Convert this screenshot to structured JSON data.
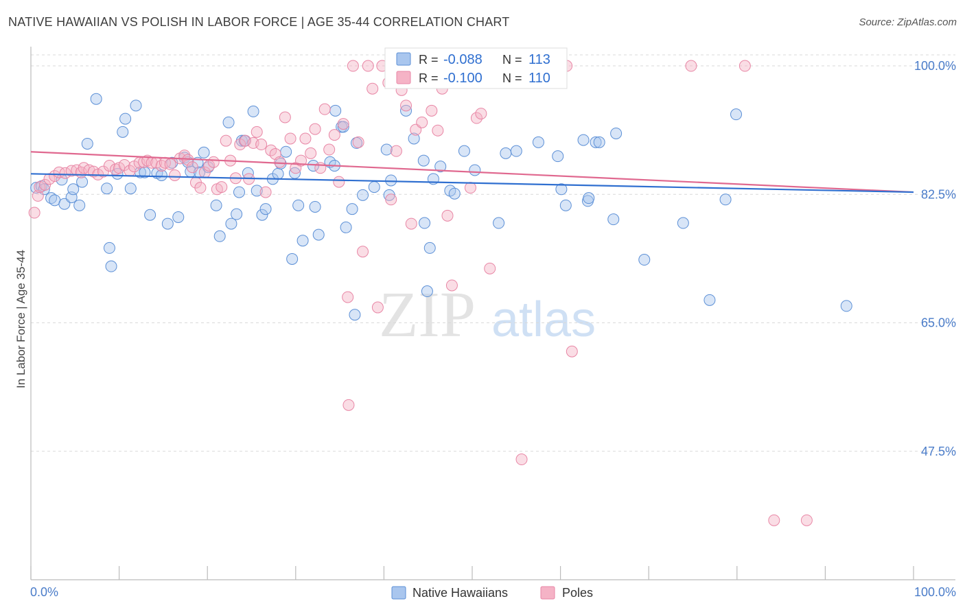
{
  "header": {
    "title": "NATIVE HAWAIIAN VS POLISH IN LABOR FORCE | AGE 35-44 CORRELATION CHART",
    "source": "Source: ZipAtlas.com"
  },
  "watermark": {
    "zip": "ZIP",
    "atlas": "atlas"
  },
  "colors": {
    "blue_fill": "#a9c6ee",
    "blue_stroke": "#5b8fd6",
    "blue_line": "#2f6fd0",
    "pink_fill": "#f5b3c6",
    "pink_stroke": "#e886a5",
    "pink_line": "#e0688f",
    "axis_text": "#4a7cc9",
    "grid": "#d9d9d9"
  },
  "legend_stats": [
    {
      "r_label": "R =",
      "r_value": "-0.088",
      "n_label": "N =",
      "n_value": "113",
      "color": "blue"
    },
    {
      "r_label": "R =",
      "r_value": "-0.100",
      "n_label": "N =",
      "n_value": "110",
      "color": "pink"
    }
  ],
  "bottom_legend": [
    {
      "label": "Native Hawaiians",
      "color": "blue"
    },
    {
      "label": "Poles",
      "color": "pink"
    }
  ],
  "chart_data": {
    "type": "scatter",
    "title": "NATIVE HAWAIIAN VS POLISH IN LABOR FORCE | AGE 35-44 CORRELATION CHART",
    "xlabel": "",
    "ylabel": "In Labor Force | Age 35-44",
    "xlim": [
      0,
      100
    ],
    "ylim": [
      30,
      101.5
    ],
    "x_tick_labels": [
      "0.0%",
      "100.0%"
    ],
    "y_ticks": [
      47.5,
      65.0,
      82.5,
      100.0
    ],
    "y_tick_labels": [
      "47.5%",
      "65.0%",
      "82.5%",
      "100.0%"
    ],
    "grid": true,
    "series": [
      {
        "name": "Native Hawaiians",
        "color": "blue",
        "trend": {
          "x": [
            0,
            100
          ],
          "y": [
            85.3,
            82.8
          ]
        },
        "points": [
          [
            0.6,
            83.4
          ],
          [
            1.2,
            83.6
          ],
          [
            1.5,
            83.2
          ],
          [
            2.3,
            82.0
          ],
          [
            2.7,
            81.7
          ],
          [
            3.5,
            84.5
          ],
          [
            3.8,
            81.2
          ],
          [
            4.6,
            82.1
          ],
          [
            4.8,
            83.2
          ],
          [
            5.5,
            81.0
          ],
          [
            5.8,
            84.2
          ],
          [
            6.4,
            89.4
          ],
          [
            7.4,
            95.5
          ],
          [
            8.6,
            83.3
          ],
          [
            8.9,
            75.2
          ],
          [
            9.1,
            72.7
          ],
          [
            9.8,
            85.3
          ],
          [
            10.4,
            91.0
          ],
          [
            10.7,
            92.8
          ],
          [
            11.3,
            83.3
          ],
          [
            11.9,
            94.6
          ],
          [
            12.4,
            85.5
          ],
          [
            12.9,
            85.5
          ],
          [
            13.5,
            79.7
          ],
          [
            14.3,
            85.4
          ],
          [
            14.8,
            85.1
          ],
          [
            15.5,
            78.5
          ],
          [
            16.0,
            86.8
          ],
          [
            16.7,
            79.4
          ],
          [
            17.4,
            87.5
          ],
          [
            17.8,
            86.9
          ],
          [
            18.1,
            85.6
          ],
          [
            18.9,
            86.8
          ],
          [
            19.1,
            85.5
          ],
          [
            19.6,
            88.2
          ],
          [
            20.1,
            86.2
          ],
          [
            21.0,
            81.0
          ],
          [
            21.4,
            76.8
          ],
          [
            22.4,
            92.3
          ],
          [
            22.7,
            78.5
          ],
          [
            23.3,
            79.8
          ],
          [
            23.6,
            82.8
          ],
          [
            23.9,
            89.8
          ],
          [
            24.2,
            89.8
          ],
          [
            24.6,
            85.4
          ],
          [
            25.2,
            93.8
          ],
          [
            25.6,
            83.0
          ],
          [
            26.2,
            79.7
          ],
          [
            26.6,
            80.5
          ],
          [
            27.4,
            84.6
          ],
          [
            28.0,
            85.3
          ],
          [
            28.3,
            86.7
          ],
          [
            28.9,
            88.3
          ],
          [
            29.6,
            73.7
          ],
          [
            29.9,
            85.4
          ],
          [
            30.3,
            81.0
          ],
          [
            30.8,
            76.2
          ],
          [
            32.0,
            86.4
          ],
          [
            32.2,
            80.8
          ],
          [
            32.6,
            77.0
          ],
          [
            33.9,
            86.9
          ],
          [
            34.4,
            86.4
          ],
          [
            34.5,
            93.9
          ],
          [
            35.2,
            91.7
          ],
          [
            35.4,
            91.7
          ],
          [
            35.7,
            78.0
          ],
          [
            36.4,
            80.5
          ],
          [
            36.7,
            66.1
          ],
          [
            36.9,
            89.5
          ],
          [
            37.6,
            82.4
          ],
          [
            38.9,
            83.5
          ],
          [
            40.3,
            88.6
          ],
          [
            40.6,
            82.4
          ],
          [
            40.8,
            84.4
          ],
          [
            42.5,
            93.9
          ],
          [
            43.4,
            90.1
          ],
          [
            44.5,
            87.1
          ],
          [
            44.6,
            78.6
          ],
          [
            44.9,
            69.3
          ],
          [
            45.2,
            75.2
          ],
          [
            45.6,
            84.6
          ],
          [
            46.4,
            86.3
          ],
          [
            47.5,
            83.0
          ],
          [
            48.0,
            82.6
          ],
          [
            49.1,
            88.4
          ],
          [
            50.3,
            85.8
          ],
          [
            53.0,
            78.6
          ],
          [
            53.8,
            88.1
          ],
          [
            55.0,
            88.4
          ],
          [
            57.5,
            89.6
          ],
          [
            59.7,
            87.7
          ],
          [
            60.1,
            83.2
          ],
          [
            60.6,
            81.0
          ],
          [
            62.6,
            89.9
          ],
          [
            63.1,
            81.6
          ],
          [
            63.2,
            82.0
          ],
          [
            64.0,
            89.6
          ],
          [
            64.4,
            89.6
          ],
          [
            66.0,
            79.1
          ],
          [
            66.3,
            90.8
          ],
          [
            69.5,
            73.6
          ],
          [
            73.9,
            78.6
          ],
          [
            76.9,
            68.1
          ],
          [
            78.7,
            81.8
          ],
          [
            79.9,
            93.4
          ],
          [
            92.4,
            67.3
          ],
          [
            59.2,
            100.0
          ]
        ]
      },
      {
        "name": "Poles",
        "color": "pink",
        "trend": {
          "x": [
            0,
            100
          ],
          "y": [
            88.3,
            82.8
          ]
        },
        "points": [
          [
            0.4,
            80.0
          ],
          [
            0.8,
            82.3
          ],
          [
            1.0,
            83.5
          ],
          [
            1.6,
            83.8
          ],
          [
            2.1,
            84.6
          ],
          [
            2.7,
            85.0
          ],
          [
            3.2,
            85.5
          ],
          [
            3.9,
            85.4
          ],
          [
            4.6,
            85.7
          ],
          [
            5.2,
            85.8
          ],
          [
            5.7,
            85.5
          ],
          [
            6.0,
            86.1
          ],
          [
            6.6,
            85.8
          ],
          [
            7.1,
            85.6
          ],
          [
            7.6,
            85.2
          ],
          [
            8.2,
            85.6
          ],
          [
            8.9,
            86.4
          ],
          [
            9.6,
            85.9
          ],
          [
            10.0,
            86.1
          ],
          [
            10.6,
            86.5
          ],
          [
            11.2,
            85.7
          ],
          [
            11.7,
            86.3
          ],
          [
            12.3,
            86.8
          ],
          [
            12.8,
            86.9
          ],
          [
            13.2,
            87.1
          ],
          [
            13.7,
            86.8
          ],
          [
            14.2,
            86.8
          ],
          [
            14.8,
            86.4
          ],
          [
            15.2,
            86.8
          ],
          [
            15.8,
            86.6
          ],
          [
            16.3,
            85.1
          ],
          [
            16.9,
            87.4
          ],
          [
            17.4,
            87.8
          ],
          [
            17.8,
            87.2
          ],
          [
            18.3,
            86.2
          ],
          [
            18.7,
            84.1
          ],
          [
            19.2,
            83.4
          ],
          [
            19.7,
            85.5
          ],
          [
            20.2,
            86.4
          ],
          [
            20.7,
            86.9
          ],
          [
            21.1,
            83.2
          ],
          [
            21.6,
            83.5
          ],
          [
            22.1,
            89.8
          ],
          [
            22.6,
            87.1
          ],
          [
            23.2,
            84.7
          ],
          [
            23.7,
            89.3
          ],
          [
            24.3,
            89.8
          ],
          [
            24.7,
            84.6
          ],
          [
            25.2,
            89.5
          ],
          [
            25.6,
            91.0
          ],
          [
            26.1,
            89.3
          ],
          [
            26.6,
            82.8
          ],
          [
            27.2,
            88.5
          ],
          [
            27.7,
            88.0
          ],
          [
            28.2,
            86.9
          ],
          [
            28.8,
            93.0
          ],
          [
            29.4,
            90.1
          ],
          [
            30.0,
            86.1
          ],
          [
            30.6,
            87.1
          ],
          [
            31.1,
            90.1
          ],
          [
            31.7,
            88.1
          ],
          [
            32.2,
            91.4
          ],
          [
            32.8,
            86.1
          ],
          [
            33.3,
            94.1
          ],
          [
            33.8,
            88.6
          ],
          [
            34.4,
            90.6
          ],
          [
            34.9,
            84.2
          ],
          [
            35.4,
            92.1
          ],
          [
            35.9,
            68.5
          ],
          [
            36.5,
            100.0
          ],
          [
            37.1,
            89.6
          ],
          [
            37.6,
            74.7
          ],
          [
            38.2,
            100.0
          ],
          [
            38.7,
            96.9
          ],
          [
            39.3,
            67.1
          ],
          [
            39.8,
            100.0
          ],
          [
            40.5,
            97.7
          ],
          [
            40.8,
            81.8
          ],
          [
            41.4,
            88.4
          ],
          [
            42.0,
            96.7
          ],
          [
            42.5,
            94.6
          ],
          [
            43.1,
            78.5
          ],
          [
            43.6,
            91.3
          ],
          [
            44.3,
            92.3
          ],
          [
            44.9,
            100.0
          ],
          [
            45.4,
            93.9
          ],
          [
            46.1,
            91.2
          ],
          [
            46.6,
            96.9
          ],
          [
            47.2,
            79.6
          ],
          [
            47.7,
            70.1
          ],
          [
            48.4,
            100.0
          ],
          [
            49.2,
            100.0
          ],
          [
            49.8,
            83.4
          ],
          [
            50.5,
            92.9
          ],
          [
            51.0,
            93.5
          ],
          [
            52.0,
            72.4
          ],
          [
            53.5,
            100.0
          ],
          [
            55.0,
            100.0
          ],
          [
            55.6,
            46.4
          ],
          [
            57.0,
            100.0
          ],
          [
            58.8,
            100.0
          ],
          [
            60.7,
            100.0
          ],
          [
            61.3,
            61.1
          ],
          [
            74.8,
            100.0
          ],
          [
            80.9,
            100.0
          ],
          [
            84.2,
            38.1
          ],
          [
            87.9,
            38.1
          ],
          [
            36.0,
            53.8
          ]
        ]
      }
    ]
  }
}
